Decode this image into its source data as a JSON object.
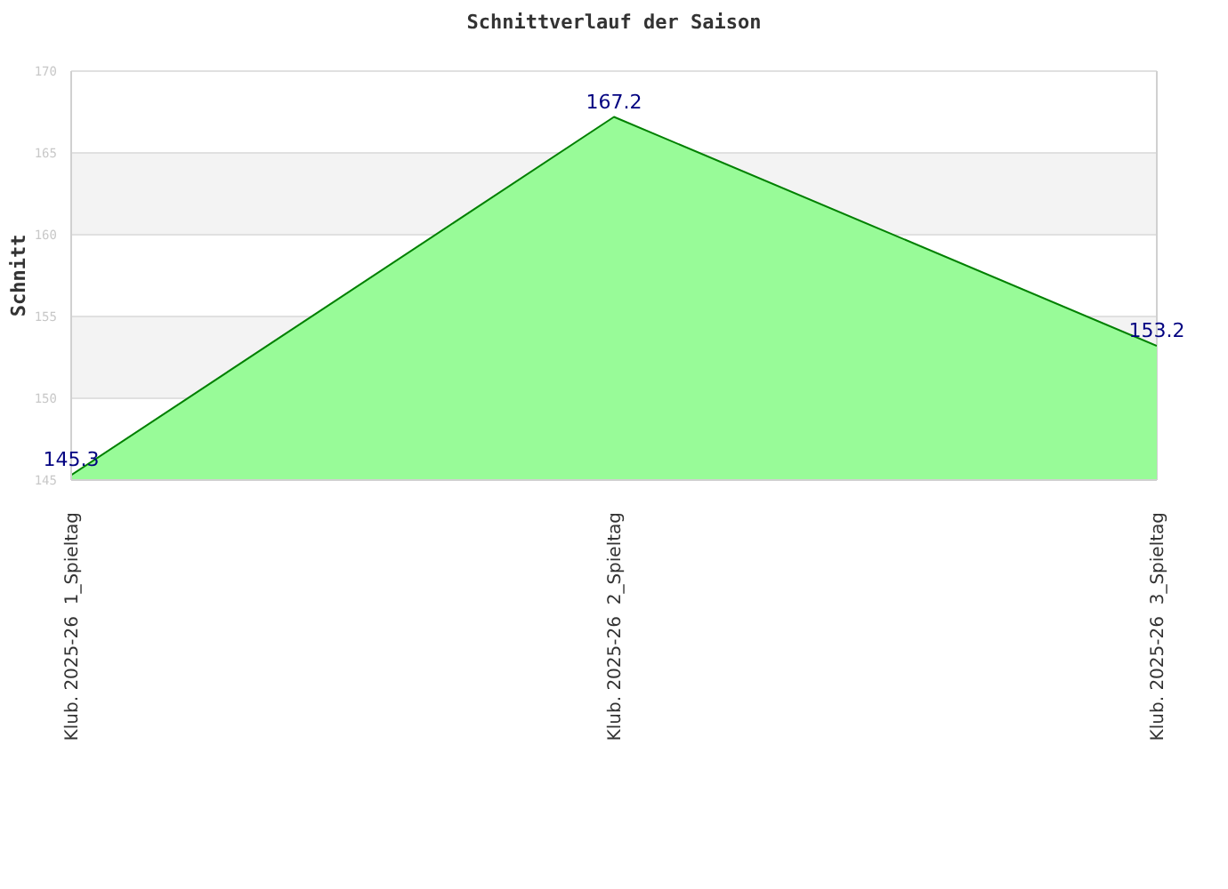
{
  "chart_data": {
    "type": "area",
    "title": "Schnittverlauf der Saison",
    "ylabel": "Schnitt",
    "categories": [
      "Klub. 2025-26  1_Spieltag",
      "Klub. 2025-26  2_Spieltag",
      "Klub. 2025-26  3_Spieltag"
    ],
    "series": [
      {
        "color": "#98fb98",
        "values": [
          145.3,
          167.2,
          153.2
        ]
      }
    ],
    "ylim": [
      145,
      170
    ],
    "yticks": [
      145,
      150,
      155,
      160,
      165,
      170
    ],
    "grid": "y",
    "data_labels": true
  }
}
